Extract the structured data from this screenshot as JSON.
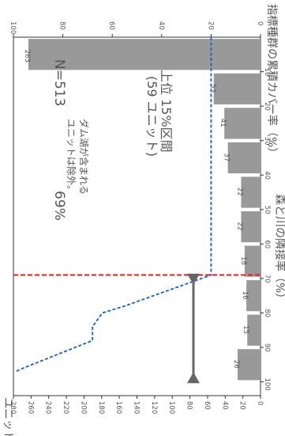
{
  "chart_data": {
    "type": "bar",
    "bins_x": [
      5,
      15,
      25,
      35,
      45,
      55,
      65,
      75,
      85,
      95
    ],
    "values": [
      263,
      53,
      41,
      37,
      22,
      22,
      18,
      16,
      15,
      26
    ],
    "x_range": [
      0,
      104
    ],
    "x_ticks": [
      10,
      20,
      30,
      40,
      50,
      60,
      70,
      80,
      90,
      100
    ],
    "y_range": [
      0,
      280
    ],
    "y_ticks": [
      0,
      20,
      40,
      60,
      80,
      100,
      120,
      140,
      160,
      180,
      200,
      220,
      240,
      260,
      280
    ],
    "secondary_y_range": [
      0,
      100
    ],
    "secondary_y_ticks": [
      "0",
      "20",
      "40",
      "60",
      "80",
      "100"
    ],
    "cumulative_line": {
      "x": [
        0,
        69,
        78,
        80,
        84,
        88,
        96,
        97
      ],
      "y": [
        20,
        20,
        55,
        64,
        68,
        68,
        96,
        99
      ]
    },
    "threshold_x": 69,
    "labels": {
      "xlabel": "森と川の隣接率（%）",
      "ylabel": "ユニット数",
      "y2label": "指標種群の累積カバー率（%）",
      "n_label": "N=513",
      "note_line1": "ダム湖が含まれる",
      "note_line2": "ユニットは除外。",
      "threshold_label": "69%",
      "range_line1": "上位 15%区間",
      "range_line2": "(59 ユニット)"
    },
    "colors": {
      "bar": "#999999",
      "cumulative_line": "#1a5fc8",
      "threshold_line": "#e02020",
      "arrow": "#666666",
      "text": "#555555"
    }
  }
}
